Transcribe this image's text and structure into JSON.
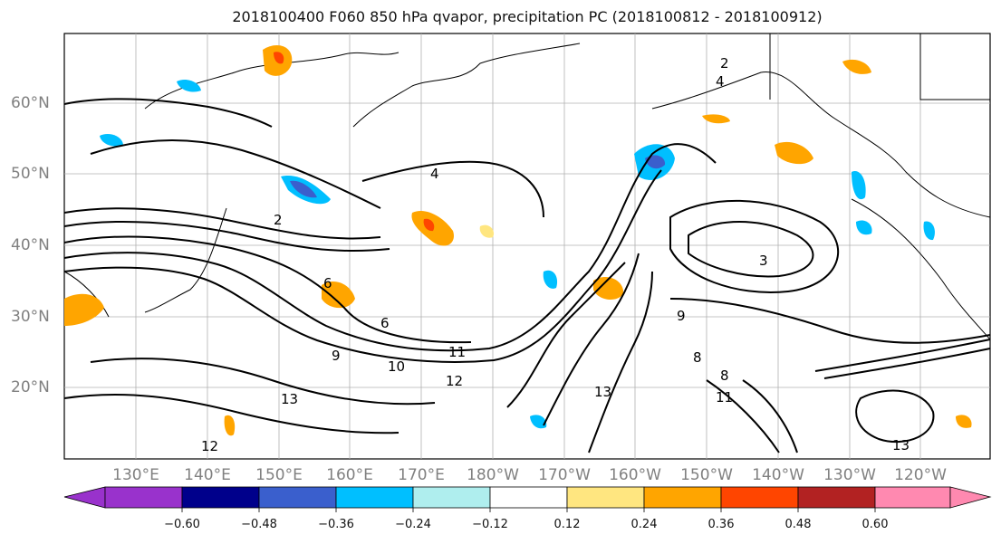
{
  "title": "2018100400 F060 850 hPa qvapor, precipitation PC (2018100812 - 2018100912)",
  "map": {
    "lat_labels": [
      "60°N",
      "50°N",
      "40°N",
      "30°N",
      "20°N"
    ],
    "lon_labels": [
      "130°E",
      "140°E",
      "150°E",
      "160°E",
      "170°E",
      "180°W",
      "170°W",
      "160°W",
      "150°W",
      "140°W",
      "130°W",
      "120°W"
    ],
    "contour_labels": [
      "2",
      "2",
      "3",
      "4",
      "4",
      "6",
      "6",
      "8",
      "8",
      "9",
      "9",
      "10",
      "11",
      "11",
      "12",
      "12",
      "13",
      "13",
      "13"
    ]
  },
  "colorbar": {
    "ticks": [
      "−0.60",
      "−0.48",
      "−0.36",
      "−0.24",
      "−0.12",
      "0.12",
      "0.24",
      "0.36",
      "0.48",
      "0.60"
    ],
    "colors": [
      "#9932cc",
      "#00008b",
      "#3a5fcd",
      "#00bfff",
      "#afeeee",
      "#ffffff",
      "#ffe680",
      "#ffa500",
      "#ff4500",
      "#b22222",
      "#ff89b0"
    ]
  }
}
